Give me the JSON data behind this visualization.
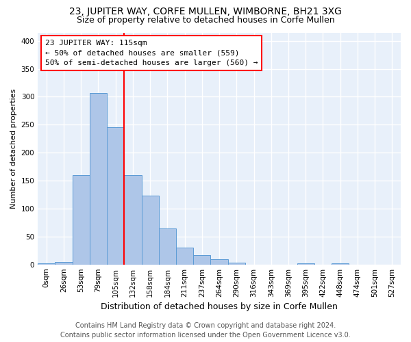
{
  "title": "23, JUPITER WAY, CORFE MULLEN, WIMBORNE, BH21 3XG",
  "subtitle": "Size of property relative to detached houses in Corfe Mullen",
  "xlabel": "Distribution of detached houses by size in Corfe Mullen",
  "ylabel": "Number of detached properties",
  "footer_line1": "Contains HM Land Registry data © Crown copyright and database right 2024.",
  "footer_line2": "Contains public sector information licensed under the Open Government Licence v3.0.",
  "bin_labels": [
    "0sqm",
    "26sqm",
    "53sqm",
    "79sqm",
    "105sqm",
    "132sqm",
    "158sqm",
    "184sqm",
    "211sqm",
    "237sqm",
    "264sqm",
    "290sqm",
    "316sqm",
    "343sqm",
    "369sqm",
    "395sqm",
    "422sqm",
    "448sqm",
    "474sqm",
    "501sqm",
    "527sqm"
  ],
  "bar_values": [
    2,
    5,
    160,
    307,
    246,
    160,
    123,
    65,
    30,
    17,
    9,
    3,
    0,
    0,
    0,
    2,
    0,
    2,
    0,
    0,
    0
  ],
  "bar_color": "#aec6e8",
  "bar_edge_color": "#5b9bd5",
  "annotation_text": "23 JUPITER WAY: 115sqm\n← 50% of detached houses are smaller (559)\n50% of semi-detached houses are larger (560) →",
  "annotation_box_color": "white",
  "annotation_box_edge_color": "red",
  "vline_color": "red",
  "vline_x": 4.5,
  "ylim": [
    0,
    415
  ],
  "yticks": [
    0,
    50,
    100,
    150,
    200,
    250,
    300,
    350,
    400
  ],
  "bg_color": "#e8f0fa",
  "grid_color": "white",
  "title_fontsize": 10,
  "subtitle_fontsize": 9,
  "xlabel_fontsize": 9,
  "ylabel_fontsize": 8,
  "tick_fontsize": 7.5,
  "footer_fontsize": 7
}
